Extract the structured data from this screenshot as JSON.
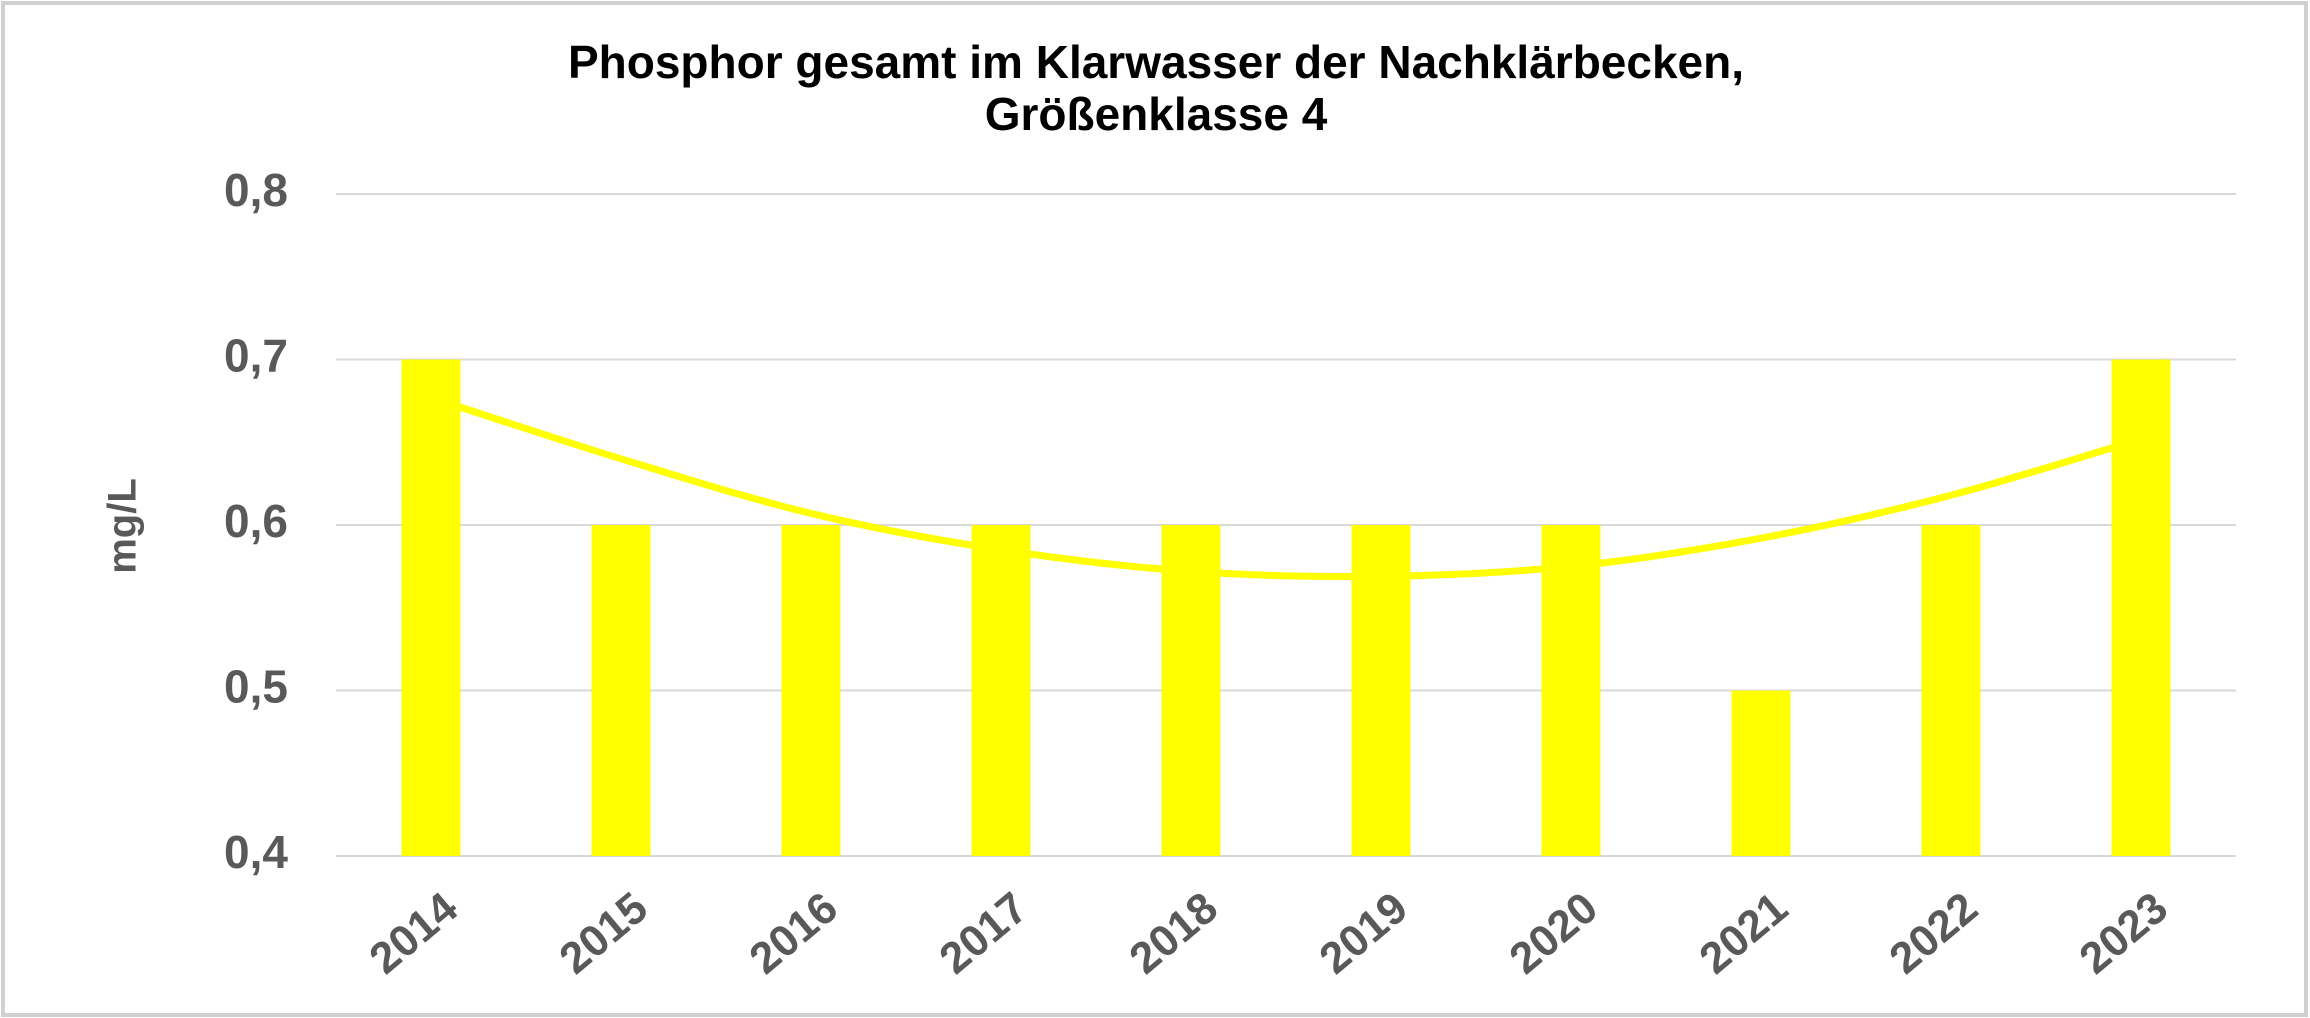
{
  "chart_data": {
    "type": "bar",
    "title": [
      "Phosphor gesamt im Klarwasser der Nachklärbecken,",
      "Größenklasse 4"
    ],
    "y_label": "mg/L",
    "categories": [
      "2014",
      "2015",
      "2016",
      "2017",
      "2018",
      "2019",
      "2020",
      "2021",
      "2022",
      "2023"
    ],
    "series": [
      {
        "color": "#ffff00",
        "values": [
          0.7,
          0.6,
          0.6,
          0.6,
          0.6,
          0.6,
          0.6,
          0.5,
          0.6,
          0.7
        ]
      },
      {
        "type": "line",
        "color": "#ffff00",
        "values": [
          0.677,
          0.64,
          0.607,
          0.585,
          0.572,
          0.569,
          0.575,
          0.592,
          0.618,
          0.652
        ]
      }
    ],
    "ylim": [
      0.4,
      0.8
    ],
    "yticks": [
      {
        "value": 0.4,
        "label": "0,4"
      },
      {
        "value": 0.5,
        "label": "0,5"
      },
      {
        "value": 0.6,
        "label": "0,6"
      },
      {
        "value": 0.7,
        "label": "0,7"
      },
      {
        "value": 0.8,
        "label": "0,8"
      }
    ],
    "grid": true
  }
}
